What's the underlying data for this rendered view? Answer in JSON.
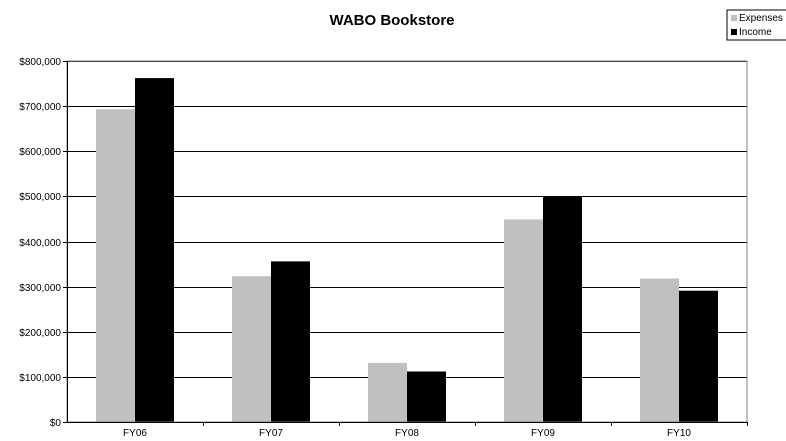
{
  "chart_data": {
    "type": "bar",
    "title": "WABO Bookstore",
    "xlabel": "",
    "ylabel": "",
    "categories": [
      "FY06",
      "FY07",
      "FY08",
      "FY09",
      "FY10"
    ],
    "series": [
      {
        "name": "Expenses",
        "color": "#c0c0c0",
        "values": [
          693000,
          323000,
          131000,
          449000,
          318000
        ]
      },
      {
        "name": "Income",
        "color": "#000000",
        "values": [
          762000,
          356000,
          112000,
          500000,
          291000
        ]
      }
    ],
    "ylim": [
      0,
      800000
    ],
    "yticks": [
      0,
      100000,
      200000,
      300000,
      400000,
      500000,
      600000,
      700000,
      800000
    ],
    "ytick_labels": [
      "$0",
      "$100,000",
      "$200,000",
      "$300,000",
      "$400,000",
      "$500,000",
      "$600,000",
      "$700,000",
      "$800,000"
    ],
    "grid": true,
    "legend_position": "top-right"
  }
}
